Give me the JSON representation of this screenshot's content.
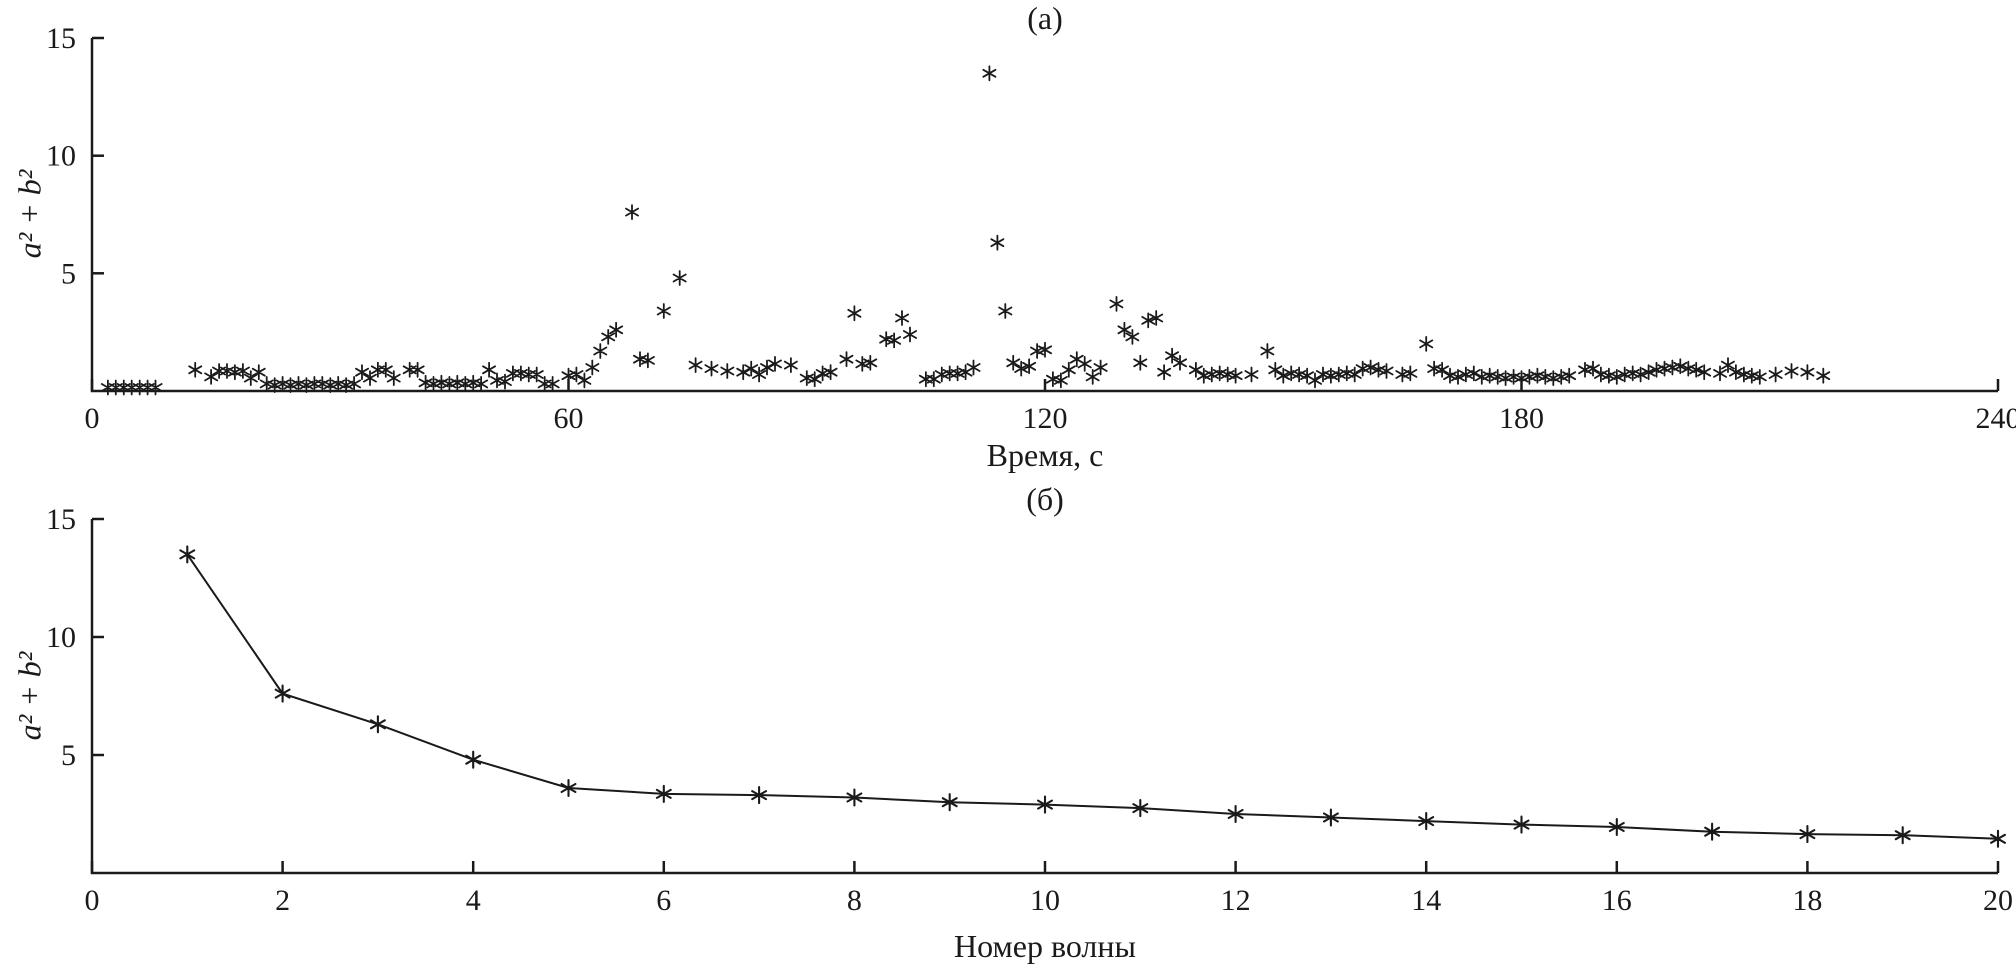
{
  "figure": {
    "background": "#ffffff",
    "ink_color": "#1a1a1a",
    "marker": "asterisk"
  },
  "chart_data": [
    {
      "id": "a",
      "type": "scatter",
      "title": "(а)",
      "xlabel": "Время, с",
      "ylabel": "a² + b²",
      "xlim": [
        0,
        240
      ],
      "ylim": [
        0,
        15
      ],
      "xticks": [
        0,
        60,
        120,
        180,
        240
      ],
      "yticks": [
        5,
        10,
        15
      ],
      "grid": false,
      "legend": null,
      "points": [
        [
          2,
          0.15
        ],
        [
          3,
          0.15
        ],
        [
          4,
          0.15
        ],
        [
          5,
          0.15
        ],
        [
          6,
          0.15
        ],
        [
          7,
          0.15
        ],
        [
          8,
          0.15
        ],
        [
          13,
          0.9
        ],
        [
          15,
          0.6
        ],
        [
          16,
          0.85
        ],
        [
          17,
          0.85
        ],
        [
          18,
          0.8
        ],
        [
          19,
          0.85
        ],
        [
          20,
          0.55
        ],
        [
          21,
          0.8
        ],
        [
          22,
          0.3
        ],
        [
          23,
          0.25
        ],
        [
          24,
          0.3
        ],
        [
          25,
          0.25
        ],
        [
          26,
          0.3
        ],
        [
          27,
          0.25
        ],
        [
          28,
          0.3
        ],
        [
          29,
          0.3
        ],
        [
          30,
          0.25
        ],
        [
          31,
          0.3
        ],
        [
          32,
          0.25
        ],
        [
          33,
          0.3
        ],
        [
          34,
          0.8
        ],
        [
          35,
          0.55
        ],
        [
          36,
          0.9
        ],
        [
          37,
          0.9
        ],
        [
          38,
          0.55
        ],
        [
          40,
          0.9
        ],
        [
          41,
          0.9
        ],
        [
          42,
          0.35
        ],
        [
          43,
          0.3
        ],
        [
          44,
          0.35
        ],
        [
          45,
          0.3
        ],
        [
          46,
          0.35
        ],
        [
          47,
          0.3
        ],
        [
          48,
          0.35
        ],
        [
          49,
          0.3
        ],
        [
          50,
          0.9
        ],
        [
          51,
          0.45
        ],
        [
          52,
          0.4
        ],
        [
          53,
          0.75
        ],
        [
          54,
          0.75
        ],
        [
          55,
          0.7
        ],
        [
          56,
          0.7
        ],
        [
          57,
          0.3
        ],
        [
          58,
          0.3
        ],
        [
          60,
          0.65
        ],
        [
          61,
          0.7
        ],
        [
          62,
          0.45
        ],
        [
          63,
          1.0
        ],
        [
          64,
          1.7
        ],
        [
          65,
          2.3
        ],
        [
          66,
          2.6
        ],
        [
          68,
          7.6
        ],
        [
          69,
          1.35
        ],
        [
          70,
          1.3
        ],
        [
          72,
          3.4
        ],
        [
          74,
          4.8
        ],
        [
          76,
          1.1
        ],
        [
          78,
          0.95
        ],
        [
          80,
          0.85
        ],
        [
          82,
          0.8
        ],
        [
          83,
          0.95
        ],
        [
          84,
          0.7
        ],
        [
          85,
          1.0
        ],
        [
          86,
          1.15
        ],
        [
          88,
          1.1
        ],
        [
          90,
          0.55
        ],
        [
          91,
          0.5
        ],
        [
          92,
          0.75
        ],
        [
          93,
          0.8
        ],
        [
          95,
          1.35
        ],
        [
          96,
          3.3
        ],
        [
          97,
          1.15
        ],
        [
          98,
          1.2
        ],
        [
          100,
          2.2
        ],
        [
          101,
          2.15
        ],
        [
          102,
          3.1
        ],
        [
          103,
          2.4
        ],
        [
          105,
          0.5
        ],
        [
          106,
          0.5
        ],
        [
          107,
          0.7
        ],
        [
          108,
          0.75
        ],
        [
          109,
          0.75
        ],
        [
          110,
          0.8
        ],
        [
          111,
          1.0
        ],
        [
          113,
          13.5
        ],
        [
          114,
          6.3
        ],
        [
          115,
          3.4
        ],
        [
          116,
          1.2
        ],
        [
          117,
          0.95
        ],
        [
          118,
          1.05
        ],
        [
          119,
          1.7
        ],
        [
          120,
          1.75
        ],
        [
          121,
          0.5
        ],
        [
          122,
          0.45
        ],
        [
          123,
          0.9
        ],
        [
          124,
          1.35
        ],
        [
          125,
          1.15
        ],
        [
          126,
          0.6
        ],
        [
          127,
          1.0
        ],
        [
          129,
          3.7
        ],
        [
          130,
          2.6
        ],
        [
          131,
          2.3
        ],
        [
          132,
          1.2
        ],
        [
          133,
          3.0
        ],
        [
          134,
          3.1
        ],
        [
          135,
          0.8
        ],
        [
          136,
          1.5
        ],
        [
          137,
          1.2
        ],
        [
          139,
          0.9
        ],
        [
          140,
          0.65
        ],
        [
          141,
          0.7
        ],
        [
          142,
          0.75
        ],
        [
          143,
          0.7
        ],
        [
          144,
          0.65
        ],
        [
          146,
          0.7
        ],
        [
          148,
          1.7
        ],
        [
          149,
          0.9
        ],
        [
          150,
          0.65
        ],
        [
          151,
          0.75
        ],
        [
          152,
          0.7
        ],
        [
          153,
          0.65
        ],
        [
          154,
          0.45
        ],
        [
          155,
          0.7
        ],
        [
          156,
          0.65
        ],
        [
          157,
          0.7
        ],
        [
          158,
          0.75
        ],
        [
          159,
          0.7
        ],
        [
          160,
          0.95
        ],
        [
          161,
          1.0
        ],
        [
          162,
          0.9
        ],
        [
          163,
          0.85
        ],
        [
          165,
          0.7
        ],
        [
          166,
          0.75
        ],
        [
          168,
          2.0
        ],
        [
          169,
          0.95
        ],
        [
          170,
          0.9
        ],
        [
          171,
          0.65
        ],
        [
          172,
          0.6
        ],
        [
          173,
          0.7
        ],
        [
          174,
          0.75
        ],
        [
          175,
          0.6
        ],
        [
          176,
          0.65
        ],
        [
          177,
          0.6
        ],
        [
          178,
          0.55
        ],
        [
          179,
          0.6
        ],
        [
          180,
          0.55
        ],
        [
          181,
          0.6
        ],
        [
          182,
          0.65
        ],
        [
          183,
          0.6
        ],
        [
          184,
          0.55
        ],
        [
          185,
          0.6
        ],
        [
          186,
          0.65
        ],
        [
          188,
          0.9
        ],
        [
          189,
          0.95
        ],
        [
          190,
          0.7
        ],
        [
          191,
          0.65
        ],
        [
          192,
          0.6
        ],
        [
          193,
          0.7
        ],
        [
          194,
          0.75
        ],
        [
          195,
          0.7
        ],
        [
          196,
          0.8
        ],
        [
          197,
          0.9
        ],
        [
          198,
          0.95
        ],
        [
          199,
          1.0
        ],
        [
          200,
          1.05
        ],
        [
          201,
          0.95
        ],
        [
          202,
          0.9
        ],
        [
          203,
          0.8
        ],
        [
          205,
          0.75
        ],
        [
          206,
          1.1
        ],
        [
          207,
          0.8
        ],
        [
          208,
          0.7
        ],
        [
          209,
          0.65
        ],
        [
          210,
          0.6
        ],
        [
          212,
          0.7
        ],
        [
          214,
          0.85
        ],
        [
          216,
          0.8
        ],
        [
          218,
          0.65
        ]
      ]
    },
    {
      "id": "b",
      "type": "line",
      "title": "(б)",
      "xlabel": "Номер волны",
      "ylabel": "a² + b²",
      "xlim": [
        0,
        20
      ],
      "ylim": [
        0,
        15
      ],
      "xticks": [
        0,
        2,
        4,
        6,
        8,
        10,
        12,
        14,
        16,
        18,
        20
      ],
      "yticks": [
        5,
        10,
        15
      ],
      "grid": false,
      "legend": null,
      "points": [
        [
          1,
          13.5
        ],
        [
          2,
          7.6
        ],
        [
          3,
          6.3
        ],
        [
          4,
          4.8
        ],
        [
          5,
          3.6
        ],
        [
          6,
          3.35
        ],
        [
          7,
          3.3
        ],
        [
          8,
          3.2
        ],
        [
          9,
          3.0
        ],
        [
          10,
          2.9
        ],
        [
          11,
          2.75
        ],
        [
          12,
          2.5
        ],
        [
          13,
          2.35
        ],
        [
          14,
          2.2
        ],
        [
          15,
          2.05
        ],
        [
          16,
          1.95
        ],
        [
          17,
          1.75
        ],
        [
          18,
          1.65
        ],
        [
          19,
          1.6
        ],
        [
          20,
          1.45
        ]
      ]
    }
  ]
}
